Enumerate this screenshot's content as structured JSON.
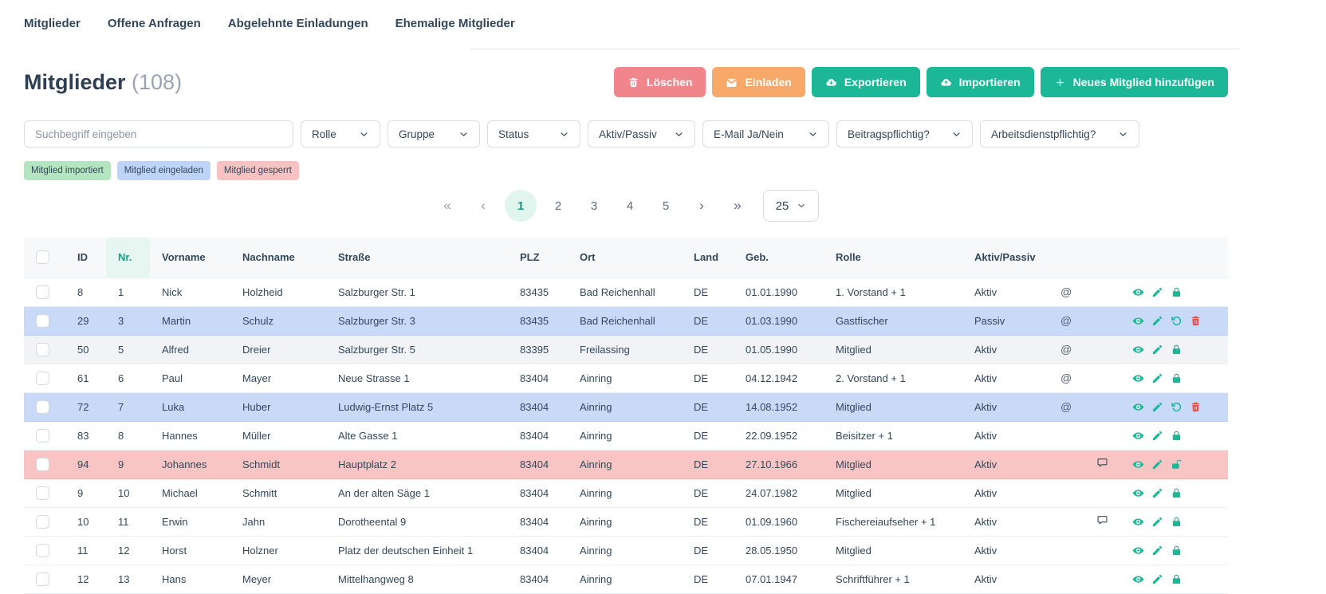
{
  "tabs": [
    {
      "label": "Mitglieder",
      "active": true
    },
    {
      "label": "Offene Anfragen",
      "active": false
    },
    {
      "label": "Abgelehnte Einladungen",
      "active": false
    },
    {
      "label": "Ehemalige Mitglieder",
      "active": false
    }
  ],
  "header": {
    "title": "Mitglieder",
    "count_display": "(108)"
  },
  "toolbar": {
    "buttons": [
      {
        "name": "delete",
        "label": "Löschen",
        "icon": "trash-icon",
        "color": "#f0868c"
      },
      {
        "name": "invite",
        "label": "Einladen",
        "icon": "envelope-icon",
        "color": "#f8a869"
      },
      {
        "name": "export",
        "label": "Exportieren",
        "icon": "cloud-download-icon",
        "color": "#1cb797"
      },
      {
        "name": "import",
        "label": "Importieren",
        "icon": "cloud-upload-icon",
        "color": "#1cb797"
      },
      {
        "name": "add-member",
        "label": "Neues Mitglied hinzufügen",
        "icon": "plus-icon",
        "color": "#1cb797"
      }
    ]
  },
  "filters": {
    "search_placeholder": "Suchbegriff eingeben",
    "dropdowns": [
      {
        "label": "Rolle"
      },
      {
        "label": "Gruppe"
      },
      {
        "label": "Status"
      },
      {
        "label": "Aktiv/Passiv"
      },
      {
        "label": "E-Mail Ja/Nein"
      },
      {
        "label": "Beitragspflichtig?"
      },
      {
        "label": "Arbeitsdienstpflichtig?"
      }
    ]
  },
  "legend": [
    {
      "label": "Mitglied importiert",
      "color": "#b5e5c0"
    },
    {
      "label": "Mitglied eingeladen",
      "color": "#bdd4f8"
    },
    {
      "label": "Mitglied gesperrt",
      "color": "#f8c2c2"
    }
  ],
  "pagination": {
    "first": "«",
    "prev": "‹",
    "next": "›",
    "last": "»",
    "pages": [
      "1",
      "2",
      "3",
      "4",
      "5"
    ],
    "active_page": "1",
    "page_size": "25"
  },
  "table": {
    "columns": [
      "ID",
      "Nr.",
      "Vorname",
      "Nachname",
      "Straße",
      "PLZ",
      "Ort",
      "Land",
      "Geb.",
      "Rolle",
      "Aktiv/Passiv"
    ],
    "sorted_column": "Nr.",
    "rows": [
      {
        "id": "8",
        "nr": "1",
        "vorname": "Nick",
        "nachname": "Holzheid",
        "strasse": "Salzburger Str. 1",
        "plz": "83435",
        "ort": "Bad Reichenhall",
        "land": "DE",
        "geb": "01.01.1990",
        "rolle": "1. Vorstand + 1",
        "aktiv_passiv": "Aktiv",
        "has_email": true,
        "has_comment": false,
        "highlight": "",
        "actions": [
          "view",
          "edit",
          "lock"
        ]
      },
      {
        "id": "29",
        "nr": "3",
        "vorname": "Martin",
        "nachname": "Schulz",
        "strasse": "Salzburger Str. 3",
        "plz": "83435",
        "ort": "Bad Reichenhall",
        "land": "DE",
        "geb": "01.03.1990",
        "rolle": "Gastfischer",
        "aktiv_passiv": "Passiv",
        "has_email": true,
        "has_comment": false,
        "highlight": "invited",
        "actions": [
          "view",
          "edit",
          "restore",
          "delete"
        ]
      },
      {
        "id": "50",
        "nr": "5",
        "vorname": "Alfred",
        "nachname": "Dreier",
        "strasse": "Salzburger Str. 5",
        "plz": "83395",
        "ort": "Freilassing",
        "land": "DE",
        "geb": "01.05.1990",
        "rolle": "Mitglied",
        "aktiv_passiv": "Aktiv",
        "has_email": true,
        "has_comment": false,
        "highlight": "hover",
        "actions": [
          "view",
          "edit",
          "lock"
        ]
      },
      {
        "id": "61",
        "nr": "6",
        "vorname": "Paul",
        "nachname": "Mayer",
        "strasse": "Neue Strasse 1",
        "plz": "83404",
        "ort": "Ainring",
        "land": "DE",
        "geb": "04.12.1942",
        "rolle": "2. Vorstand + 1",
        "aktiv_passiv": "Aktiv",
        "has_email": true,
        "has_comment": false,
        "highlight": "",
        "actions": [
          "view",
          "edit",
          "lock"
        ]
      },
      {
        "id": "72",
        "nr": "7",
        "vorname": "Luka",
        "nachname": "Huber",
        "strasse": "Ludwig-Ernst Platz 5",
        "plz": "83404",
        "ort": "Ainring",
        "land": "DE",
        "geb": "14.08.1952",
        "rolle": "Mitglied",
        "aktiv_passiv": "Aktiv",
        "has_email": true,
        "has_comment": false,
        "highlight": "invited",
        "actions": [
          "view",
          "edit",
          "restore",
          "delete"
        ]
      },
      {
        "id": "83",
        "nr": "8",
        "vorname": "Hannes",
        "nachname": "Müller",
        "strasse": "Alte Gasse 1",
        "plz": "83404",
        "ort": "Ainring",
        "land": "DE",
        "geb": "22.09.1952",
        "rolle": "Beisitzer + 1",
        "aktiv_passiv": "Aktiv",
        "has_email": false,
        "has_comment": false,
        "highlight": "",
        "actions": [
          "view",
          "edit",
          "lock"
        ]
      },
      {
        "id": "94",
        "nr": "9",
        "vorname": "Johannes",
        "nachname": "Schmidt",
        "strasse": "Hauptplatz 2",
        "plz": "83404",
        "ort": "Ainring",
        "land": "DE",
        "geb": "27.10.1966",
        "rolle": "Mitglied",
        "aktiv_passiv": "Aktiv",
        "has_email": false,
        "has_comment": true,
        "highlight": "locked",
        "actions": [
          "view",
          "edit",
          "unlock"
        ]
      },
      {
        "id": "9",
        "nr": "10",
        "vorname": "Michael",
        "nachname": "Schmitt",
        "strasse": "An der alten Säge 1",
        "plz": "83404",
        "ort": "Ainring",
        "land": "DE",
        "geb": "24.07.1982",
        "rolle": "Mitglied",
        "aktiv_passiv": "Aktiv",
        "has_email": false,
        "has_comment": false,
        "highlight": "",
        "actions": [
          "view",
          "edit",
          "lock"
        ]
      },
      {
        "id": "10",
        "nr": "11",
        "vorname": "Erwin",
        "nachname": "Jahn",
        "strasse": "Dorotheental 9",
        "plz": "83404",
        "ort": "Ainring",
        "land": "DE",
        "geb": "01.09.1960",
        "rolle": "Fischereiaufseher + 1",
        "aktiv_passiv": "Aktiv",
        "has_email": false,
        "has_comment": true,
        "highlight": "",
        "actions": [
          "view",
          "edit",
          "lock"
        ]
      },
      {
        "id": "11",
        "nr": "12",
        "vorname": "Horst",
        "nachname": "Holzner",
        "strasse": "Platz der deutschen Einheit 1",
        "plz": "83404",
        "ort": "Ainring",
        "land": "DE",
        "geb": "28.05.1950",
        "rolle": "Mitglied",
        "aktiv_passiv": "Aktiv",
        "has_email": false,
        "has_comment": false,
        "highlight": "",
        "actions": [
          "view",
          "edit",
          "lock"
        ]
      },
      {
        "id": "12",
        "nr": "13",
        "vorname": "Hans",
        "nachname": "Meyer",
        "strasse": "Mittelhangweg 8",
        "plz": "83404",
        "ort": "Ainring",
        "land": "DE",
        "geb": "07.01.1947",
        "rolle": "Schriftführer + 1",
        "aktiv_passiv": "Aktiv",
        "has_email": false,
        "has_comment": false,
        "highlight": "",
        "actions": [
          "view",
          "edit",
          "lock"
        ]
      }
    ]
  },
  "colors": {
    "accent_teal": "#1cb797",
    "delete_red": "#f0868c",
    "invite_orange": "#f8a869",
    "sorted_header_teal": "#16a085",
    "row_invited_blue": "#c8daf8",
    "row_locked_pink": "#f9c5c4",
    "row_hover_gray": "#f1f3f6",
    "trash_icon_red": "#ee4b4b",
    "active_page_bg": "#e1f5ef"
  }
}
